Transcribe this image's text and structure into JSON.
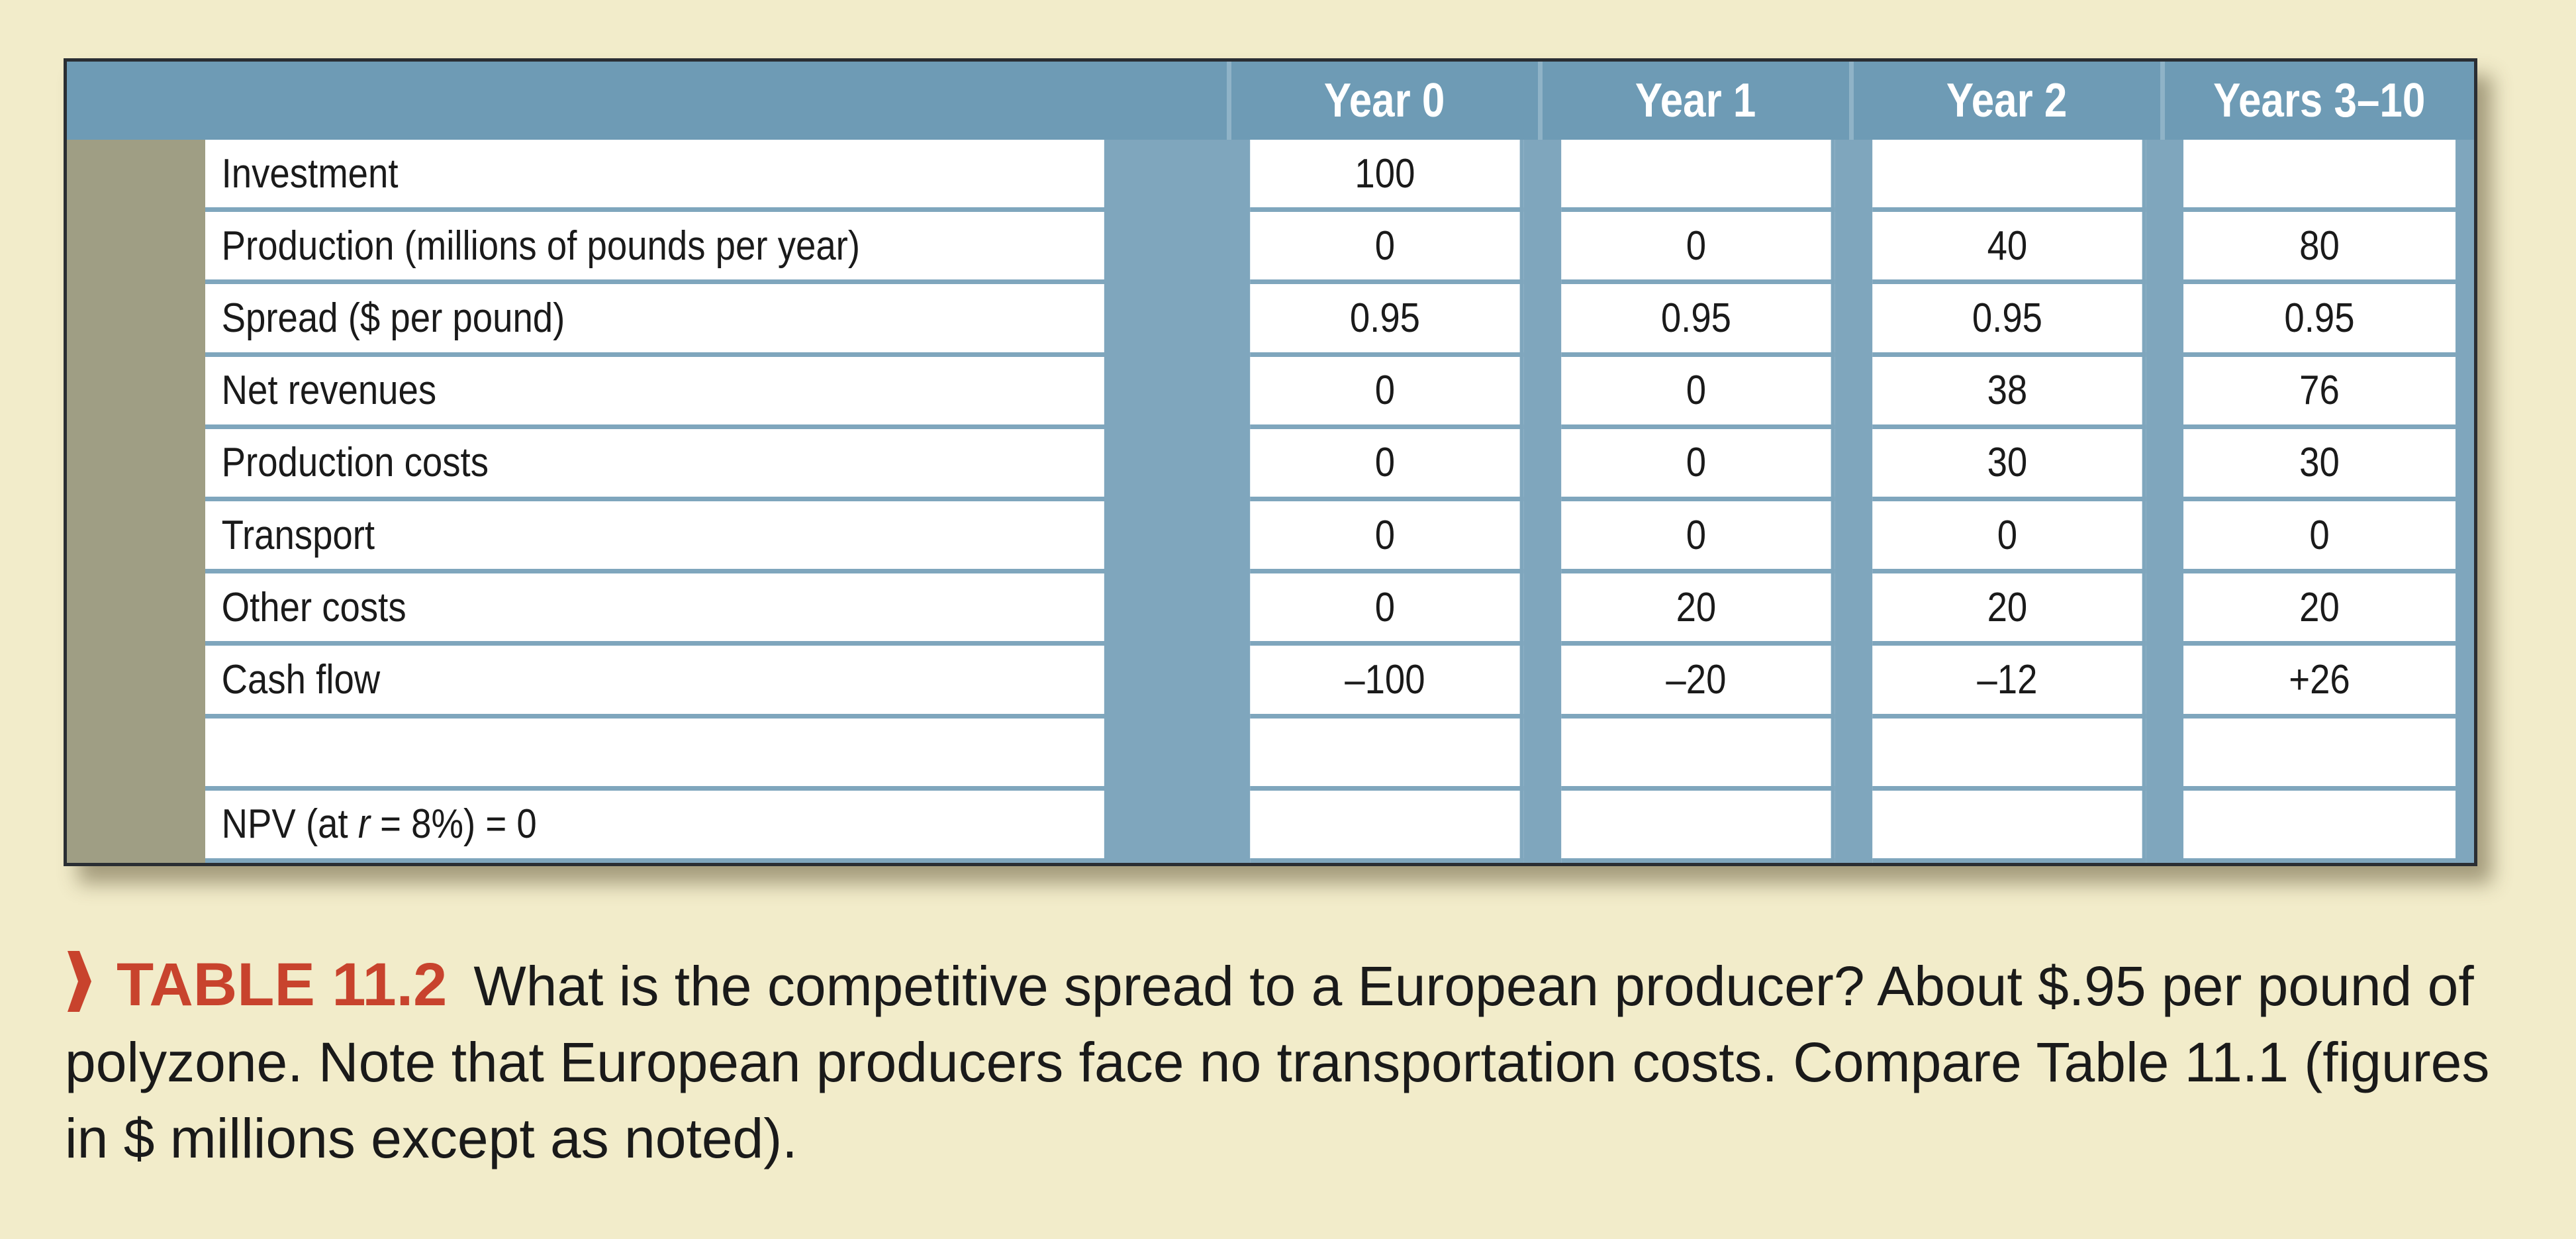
{
  "table": {
    "columns": [
      "",
      "Year 0",
      "Year 1",
      "Year 2",
      "Years 3–10"
    ],
    "rows": [
      {
        "label": "Investment",
        "values": [
          "100",
          "",
          "",
          ""
        ]
      },
      {
        "label": "Production (millions of pounds per year)",
        "values": [
          "0",
          "0",
          "40",
          "80"
        ]
      },
      {
        "label": "Spread ($ per pound)",
        "values": [
          "0.95",
          "0.95",
          "0.95",
          "0.95"
        ]
      },
      {
        "label": "Net revenues",
        "values": [
          "0",
          "0",
          "38",
          "76"
        ]
      },
      {
        "label": "Production costs",
        "values": [
          "0",
          "0",
          "30",
          "30"
        ]
      },
      {
        "label": "Transport",
        "values": [
          "0",
          "0",
          "0",
          "0"
        ]
      },
      {
        "label": "Other costs",
        "values": [
          "0",
          "20",
          "20",
          "20"
        ]
      },
      {
        "label": "Cash flow",
        "values": [
          "–100",
          "–20",
          "–12",
          "+26"
        ]
      },
      {
        "label": "",
        "values": [
          "",
          "",
          "",
          ""
        ]
      },
      {
        "label_parts": [
          "NPV (at ",
          "r",
          " = 8%) = 0"
        ],
        "values": [
          "",
          "",
          "",
          ""
        ]
      }
    ]
  },
  "caption": {
    "label": "TABLE 11.2",
    "text": "What is the competitive spread to a European producer? About $.95 per pound of polyzone. Note that European producers face no transportation costs. Compare Table 11.1 (figures in $ millions except as noted)."
  },
  "colors": {
    "background": "#f2ecca",
    "header": "#6e9bb5",
    "stub": "#9f9e84",
    "accent": "#c8432d"
  },
  "icons": {
    "caption_marker": "chevron-right-icon"
  }
}
